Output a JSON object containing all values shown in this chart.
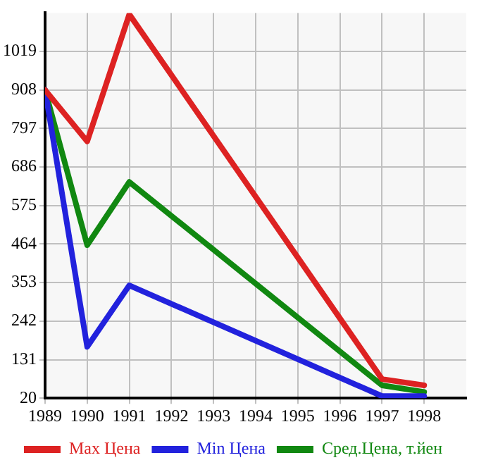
{
  "chart_data": {
    "type": "line",
    "x": [
      1989,
      1990,
      1991,
      1997,
      1998
    ],
    "xlim": [
      1989,
      1999
    ],
    "xticks": [
      1989,
      1990,
      1991,
      1992,
      1993,
      1994,
      1995,
      1996,
      1997,
      1998
    ],
    "ylim": [
      20,
      1130
    ],
    "yticks": [
      20,
      131,
      242,
      353,
      464,
      575,
      686,
      797,
      908,
      1019
    ],
    "series": [
      {
        "name": "Max Цена",
        "color": "#dd2222",
        "values": [
          908,
          760,
          1126,
          75,
          57
        ]
      },
      {
        "name": "Min Цена",
        "color": "#2222dd",
        "values": [
          908,
          168,
          345,
          26,
          26
        ]
      },
      {
        "name": "Сред.Цена, т.йен",
        "color": "#118811",
        "values": [
          908,
          461,
          643,
          57,
          38
        ]
      }
    ],
    "grid": true,
    "legend": "bottom",
    "marker": "none",
    "line_style": "solid"
  }
}
